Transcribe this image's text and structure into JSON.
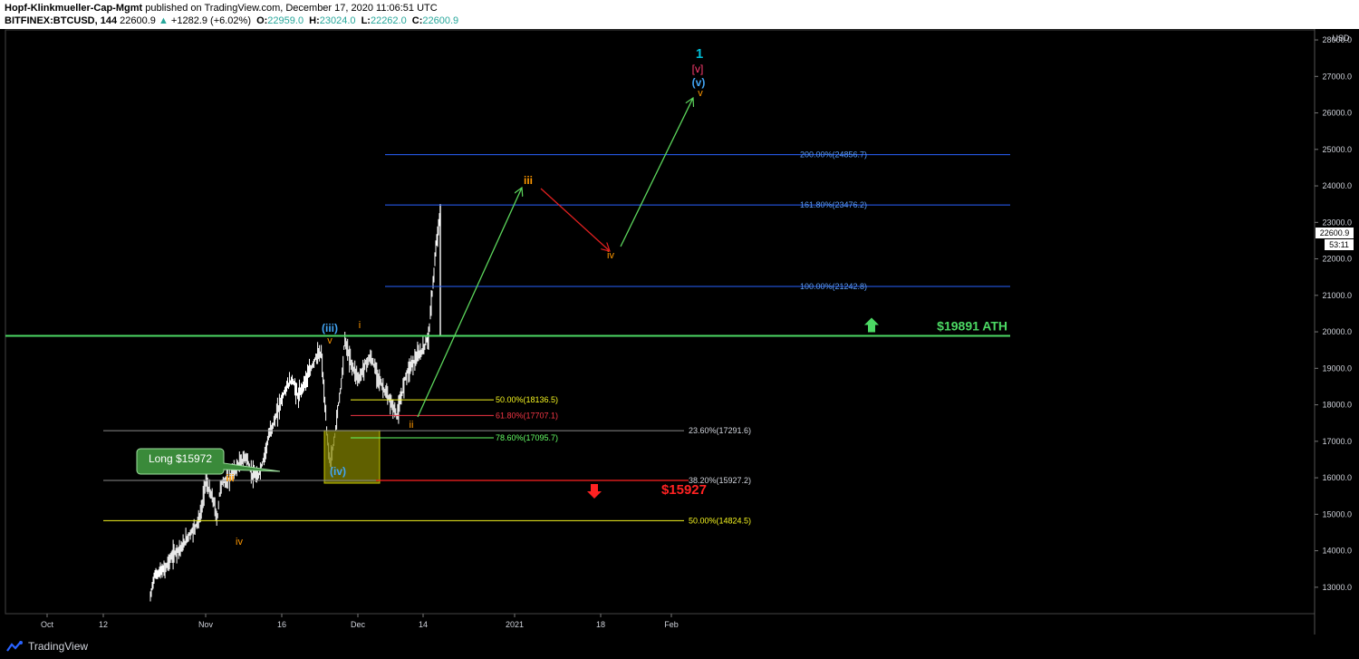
{
  "header": {
    "author": "Hopf-Klinkmueller-Cap-Mgmt",
    "published_text": "published on TradingView.com, December 17, 2020 11:06:51 UTC",
    "symbol": "BITFINEX:BTCUSD, 144",
    "last": "22600.9",
    "change_arrow": "▲",
    "change": "+1282.9 (+6.02%)",
    "o_label": "O:",
    "o_value": "22959.0",
    "h_label": "H:",
    "h_value": "23024.0",
    "l_label": "L:",
    "l_value": "22262.0",
    "c_label": "C:",
    "c_value": "22600.9"
  },
  "footer": {
    "brand": "TradingView",
    "logo_icon": "tradingview-logo-icon"
  },
  "colors": {
    "background": "#000000",
    "candle": "#ffffff",
    "fib_blue": "#2962ff",
    "fib_blue_text": "#5b9cf6",
    "fib_yellow": "#f5f520",
    "fib_red": "#f23645",
    "fib_green": "#66ff66",
    "ath": "#4cd964",
    "support": "#ff2222",
    "arrow_green": "#5cd65c",
    "arrow_red": "#e02020",
    "wave_orange": "#ff9800",
    "wave_blue": "#42a5f5",
    "wave_red": "#ff3d71",
    "wave_cyan": "#00bcd4",
    "box": "#808000"
  },
  "chart_data": {
    "type": "candlestick",
    "symbol": "BITFINEX:BTCUSD",
    "interval": "144",
    "ylim": [
      12300,
      28200
    ],
    "y_ticks": [
      "13000.0",
      "14000.0",
      "15000.0",
      "16000.0",
      "17000.0",
      "18000.0",
      "19000.0",
      "20000.0",
      "21000.0",
      "22000.0",
      "23000.0",
      "24000.0",
      "25000.0",
      "26000.0",
      "27000.0",
      "28000.0"
    ],
    "y_unit": "USD",
    "x_ticks": [
      "Oct",
      "12",
      "Nov",
      "16",
      "Dec",
      "14",
      "2021",
      "18",
      "Feb"
    ],
    "last_price_label": "22600.9",
    "countdown_label": "53:11",
    "price_path": [
      [
        0.0,
        12700
      ],
      [
        0.012,
        13300
      ],
      [
        0.03,
        13400
      ],
      [
        0.05,
        13500
      ],
      [
        0.07,
        13800
      ],
      [
        0.09,
        14000
      ],
      [
        0.11,
        14100
      ],
      [
        0.13,
        14400
      ],
      [
        0.15,
        14600
      ],
      [
        0.17,
        14900
      ],
      [
        0.18,
        15300
      ],
      [
        0.19,
        15950
      ],
      [
        0.2,
        15700
      ],
      [
        0.21,
        15500
      ],
      [
        0.22,
        15300
      ],
      [
        0.23,
        14800
      ],
      [
        0.24,
        15700
      ],
      [
        0.25,
        15900
      ],
      [
        0.27,
        15950
      ],
      [
        0.29,
        16200
      ],
      [
        0.31,
        16400
      ],
      [
        0.33,
        16600
      ],
      [
        0.35,
        16100
      ],
      [
        0.37,
        16000
      ],
      [
        0.39,
        16500
      ],
      [
        0.41,
        17200
      ],
      [
        0.43,
        17600
      ],
      [
        0.45,
        18100
      ],
      [
        0.47,
        18500
      ],
      [
        0.49,
        18700
      ],
      [
        0.51,
        18200
      ],
      [
        0.53,
        18600
      ],
      [
        0.55,
        18900
      ],
      [
        0.57,
        19300
      ],
      [
        0.59,
        19400
      ],
      [
        0.6,
        18200
      ],
      [
        0.61,
        17100
      ],
      [
        0.62,
        16400
      ],
      [
        0.63,
        16800
      ],
      [
        0.64,
        17400
      ],
      [
        0.65,
        18100
      ],
      [
        0.66,
        18700
      ],
      [
        0.67,
        19800
      ],
      [
        0.68,
        19500
      ],
      [
        0.69,
        19200
      ],
      [
        0.7,
        19000
      ],
      [
        0.72,
        18700
      ],
      [
        0.74,
        19100
      ],
      [
        0.76,
        19300
      ],
      [
        0.78,
        18900
      ],
      [
        0.8,
        18500
      ],
      [
        0.82,
        18200
      ],
      [
        0.84,
        17900
      ],
      [
        0.85,
        17700
      ],
      [
        0.86,
        18000
      ],
      [
        0.88,
        18800
      ],
      [
        0.9,
        19100
      ],
      [
        0.92,
        19300
      ],
      [
        0.94,
        19500
      ],
      [
        0.96,
        19900
      ],
      [
        0.97,
        20900
      ],
      [
        0.98,
        21800
      ],
      [
        0.99,
        22700
      ],
      [
        1.0,
        23200
      ]
    ],
    "fib_levels": [
      {
        "label": "200.00%(24856.7)",
        "price": 24856.7,
        "color": "blue"
      },
      {
        "label": "161.80%(23476.2)",
        "price": 23476.2,
        "color": "blue"
      },
      {
        "label": "100.00%(21242.8)",
        "price": 21242.8,
        "color": "blue"
      },
      {
        "label": "50.00%(18136.5)",
        "price": 18136.5,
        "color": "yellow"
      },
      {
        "label": "61.80%(17707.1)",
        "price": 17707.1,
        "color": "red"
      },
      {
        "label": "78.60%(17095.7)",
        "price": 17095.7,
        "color": "green"
      },
      {
        "label": "23.60%(17291.6)",
        "price": 17291.6,
        "color": "gray"
      },
      {
        "label": "38.20%(15927.2)",
        "price": 15927.2,
        "color": "gray"
      },
      {
        "label": "50.00%(14824.5)",
        "price": 14824.5,
        "color": "yellow"
      }
    ],
    "ath_label": "$19891 ATH",
    "ath_price": 19891,
    "support_label": "$15927",
    "support_price": 15927,
    "callout": "Long $15972",
    "wave_labels": {
      "top_1": "1",
      "top_v_bracket": "[v]",
      "top_v_paren": "(v)",
      "top_v": "v",
      "iii_paren": "(iii)",
      "v_small": "v",
      "i_small": "i",
      "ii_small": "ii",
      "iv_paren": "(iv)",
      "iii_future": "iii",
      "iv_future": "iv",
      "iii_left": "iii",
      "iv_left": "iv"
    }
  }
}
